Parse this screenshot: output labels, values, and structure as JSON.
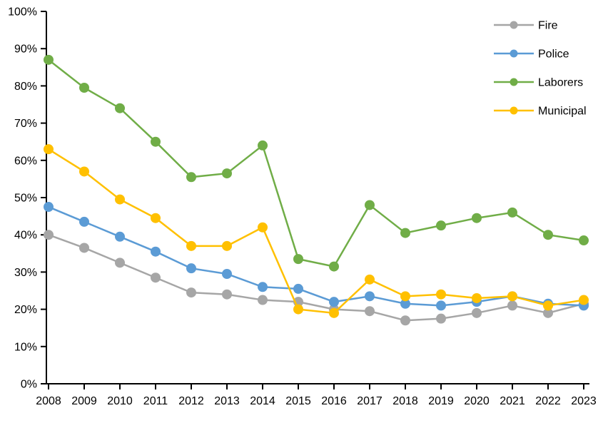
{
  "chart_data": {
    "type": "line",
    "title": "",
    "xlabel": "",
    "ylabel": "",
    "ylim": [
      0,
      100
    ],
    "grid": false,
    "legend_position": "top-right",
    "axis_color": "#000000",
    "background_color": "#ffffff",
    "x_labels": [
      "2008",
      "2009",
      "2010",
      "2011",
      "2012",
      "2013",
      "2014",
      "2015",
      "2016",
      "2017",
      "2018",
      "2019",
      "2020",
      "2021",
      "2022",
      "2023"
    ],
    "y_ticks": [
      0,
      10,
      20,
      30,
      40,
      50,
      60,
      70,
      80,
      90,
      100
    ],
    "y_tick_labels": [
      "0%",
      "10%",
      "20%",
      "30%",
      "40%",
      "50%",
      "60%",
      "70%",
      "80%",
      "90%",
      "100%"
    ],
    "series": [
      {
        "name": "Fire",
        "color": "#A6A6A6",
        "values": [
          40,
          36.5,
          32.5,
          28.5,
          24.5,
          24,
          22.5,
          22,
          20,
          19.5,
          17,
          17.5,
          19,
          21,
          19,
          21.5
        ]
      },
      {
        "name": "Police",
        "color": "#5B9BD5",
        "values": [
          47.5,
          43.5,
          39.5,
          35.5,
          31,
          29.5,
          26,
          25.5,
          22,
          23.5,
          21.5,
          21,
          22,
          23.5,
          21.5,
          21
        ]
      },
      {
        "name": "Laborers",
        "color": "#70AD47",
        "values": [
          87,
          79.5,
          74,
          65,
          55.5,
          56.5,
          64,
          33.5,
          31.5,
          48,
          40.5,
          42.5,
          44.5,
          46,
          40,
          38.5
        ]
      },
      {
        "name": "Municipal",
        "color": "#FFC000",
        "values": [
          63,
          57,
          49.5,
          44.5,
          37,
          37,
          42,
          20,
          19,
          28,
          23.5,
          24,
          23,
          23.5,
          21,
          22.5
        ]
      }
    ]
  }
}
